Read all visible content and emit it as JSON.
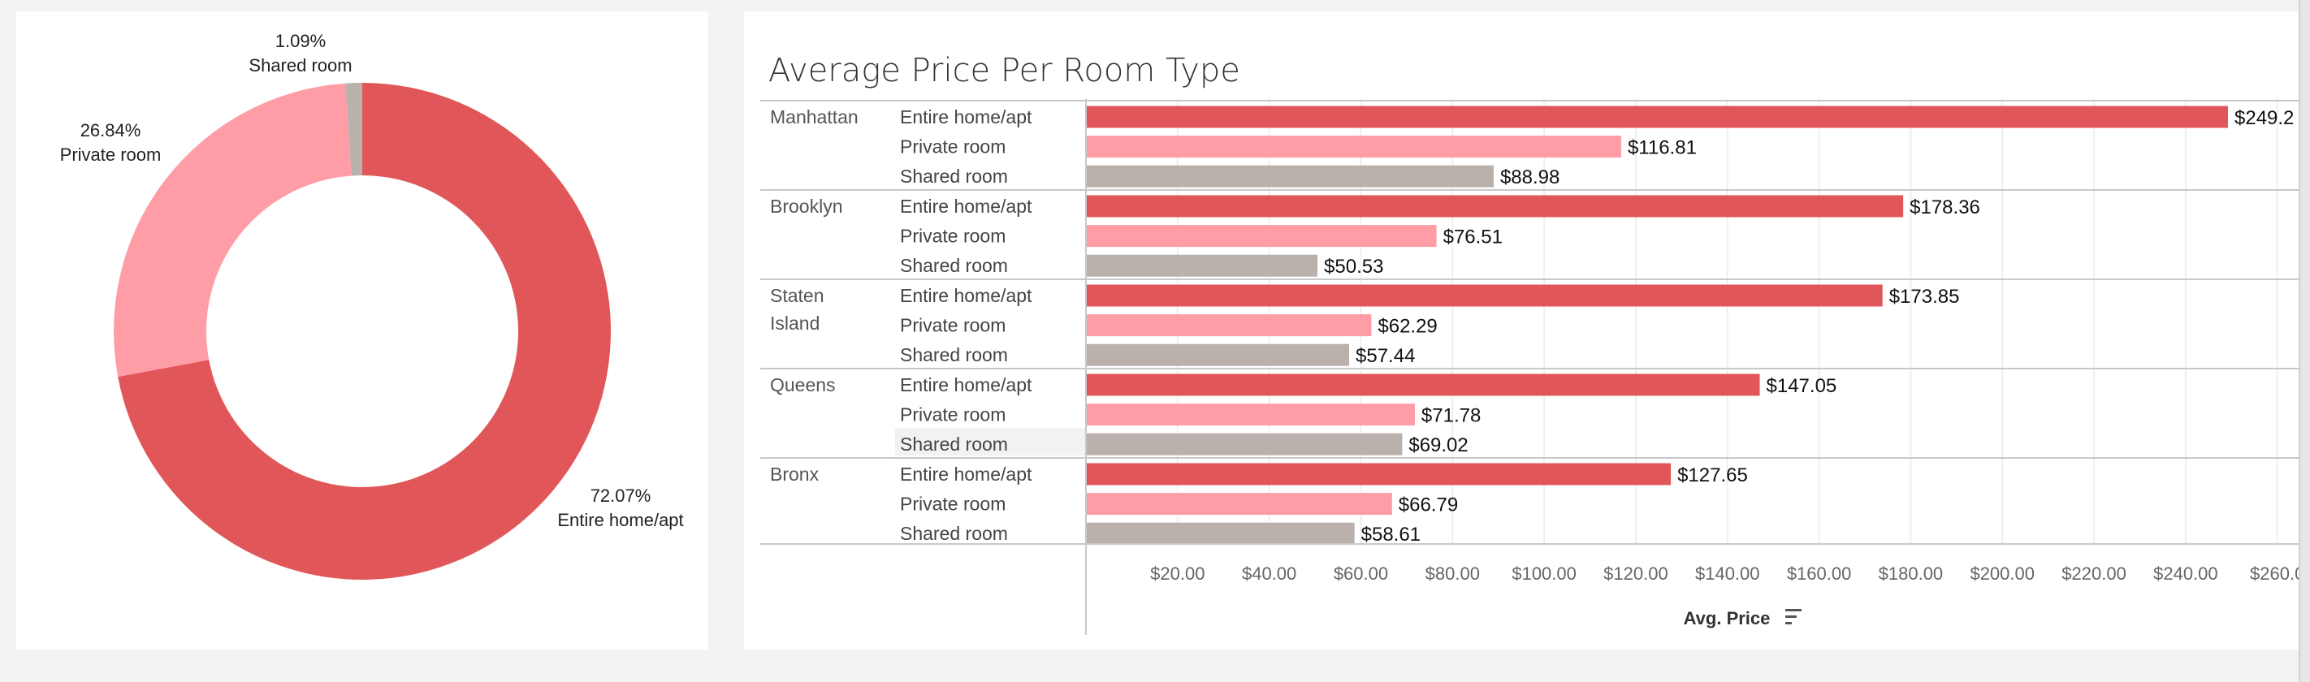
{
  "donut": {
    "chart_data": {
      "type": "pie",
      "style": "donut",
      "slices": [
        {
          "label": "Entire home/apt",
          "percent": 72.07,
          "percent_label": "72.07%",
          "color": "#e15759"
        },
        {
          "label": "Private room",
          "percent": 26.84,
          "percent_label": "26.84%",
          "color": "#ff9da7"
        },
        {
          "label": "Shared room",
          "percent": 1.09,
          "percent_label": "1.09%",
          "color": "#bab0ac"
        }
      ]
    }
  },
  "bars": {
    "chart_data": {
      "type": "bar",
      "orientation": "horizontal",
      "title": "Average Price Per Room Type",
      "xlabel": "Avg. Price",
      "xlim": [
        0,
        260
      ],
      "grid": true,
      "ticks": [
        {
          "value": 20,
          "label": "$20.00"
        },
        {
          "value": 40,
          "label": "$40.00"
        },
        {
          "value": 60,
          "label": "$60.00"
        },
        {
          "value": 80,
          "label": "$80.00"
        },
        {
          "value": 100,
          "label": "$100.00"
        },
        {
          "value": 120,
          "label": "$120.00"
        },
        {
          "value": 140,
          "label": "$140.00"
        },
        {
          "value": 160,
          "label": "$160.00"
        },
        {
          "value": 180,
          "label": "$180.00"
        },
        {
          "value": 200,
          "label": "$200.00"
        },
        {
          "value": 220,
          "label": "$220.00"
        },
        {
          "value": 240,
          "label": "$240.00"
        },
        {
          "value": 260,
          "label": "$260.0"
        }
      ],
      "room_colors": {
        "Entire home/apt": "#e15759",
        "Private room": "#ff9da7",
        "Shared room": "#bab0ac"
      },
      "groups": [
        {
          "name": [
            "Manhattan"
          ],
          "rows": [
            {
              "room": "Entire home/apt",
              "value": 249.24,
              "label": "$249.2"
            },
            {
              "room": "Private room",
              "value": 116.81,
              "label": "$116.81"
            },
            {
              "room": "Shared room",
              "value": 88.98,
              "label": "$88.98"
            }
          ]
        },
        {
          "name": [
            "Brooklyn"
          ],
          "rows": [
            {
              "room": "Entire home/apt",
              "value": 178.36,
              "label": "$178.36"
            },
            {
              "room": "Private room",
              "value": 76.51,
              "label": "$76.51"
            },
            {
              "room": "Shared room",
              "value": 50.53,
              "label": "$50.53"
            }
          ]
        },
        {
          "name": [
            "Staten",
            "Island"
          ],
          "rows": [
            {
              "room": "Entire home/apt",
              "value": 173.85,
              "label": "$173.85"
            },
            {
              "room": "Private room",
              "value": 62.29,
              "label": "$62.29"
            },
            {
              "room": "Shared room",
              "value": 57.44,
              "label": "$57.44"
            }
          ]
        },
        {
          "name": [
            "Queens"
          ],
          "rows": [
            {
              "room": "Entire home/apt",
              "value": 147.05,
              "label": "$147.05"
            },
            {
              "room": "Private room",
              "value": 71.78,
              "label": "$71.78"
            },
            {
              "room": "Shared room",
              "value": 69.02,
              "label": "$69.02"
            }
          ]
        },
        {
          "name": [
            "Bronx"
          ],
          "rows": [
            {
              "room": "Entire home/apt",
              "value": 127.65,
              "label": "$127.65"
            },
            {
              "room": "Private room",
              "value": 66.79,
              "label": "$66.79"
            },
            {
              "room": "Shared room",
              "value": 58.61,
              "label": "$58.61"
            }
          ]
        }
      ]
    }
  },
  "icons": {
    "sort": "sort-descending-icon"
  }
}
